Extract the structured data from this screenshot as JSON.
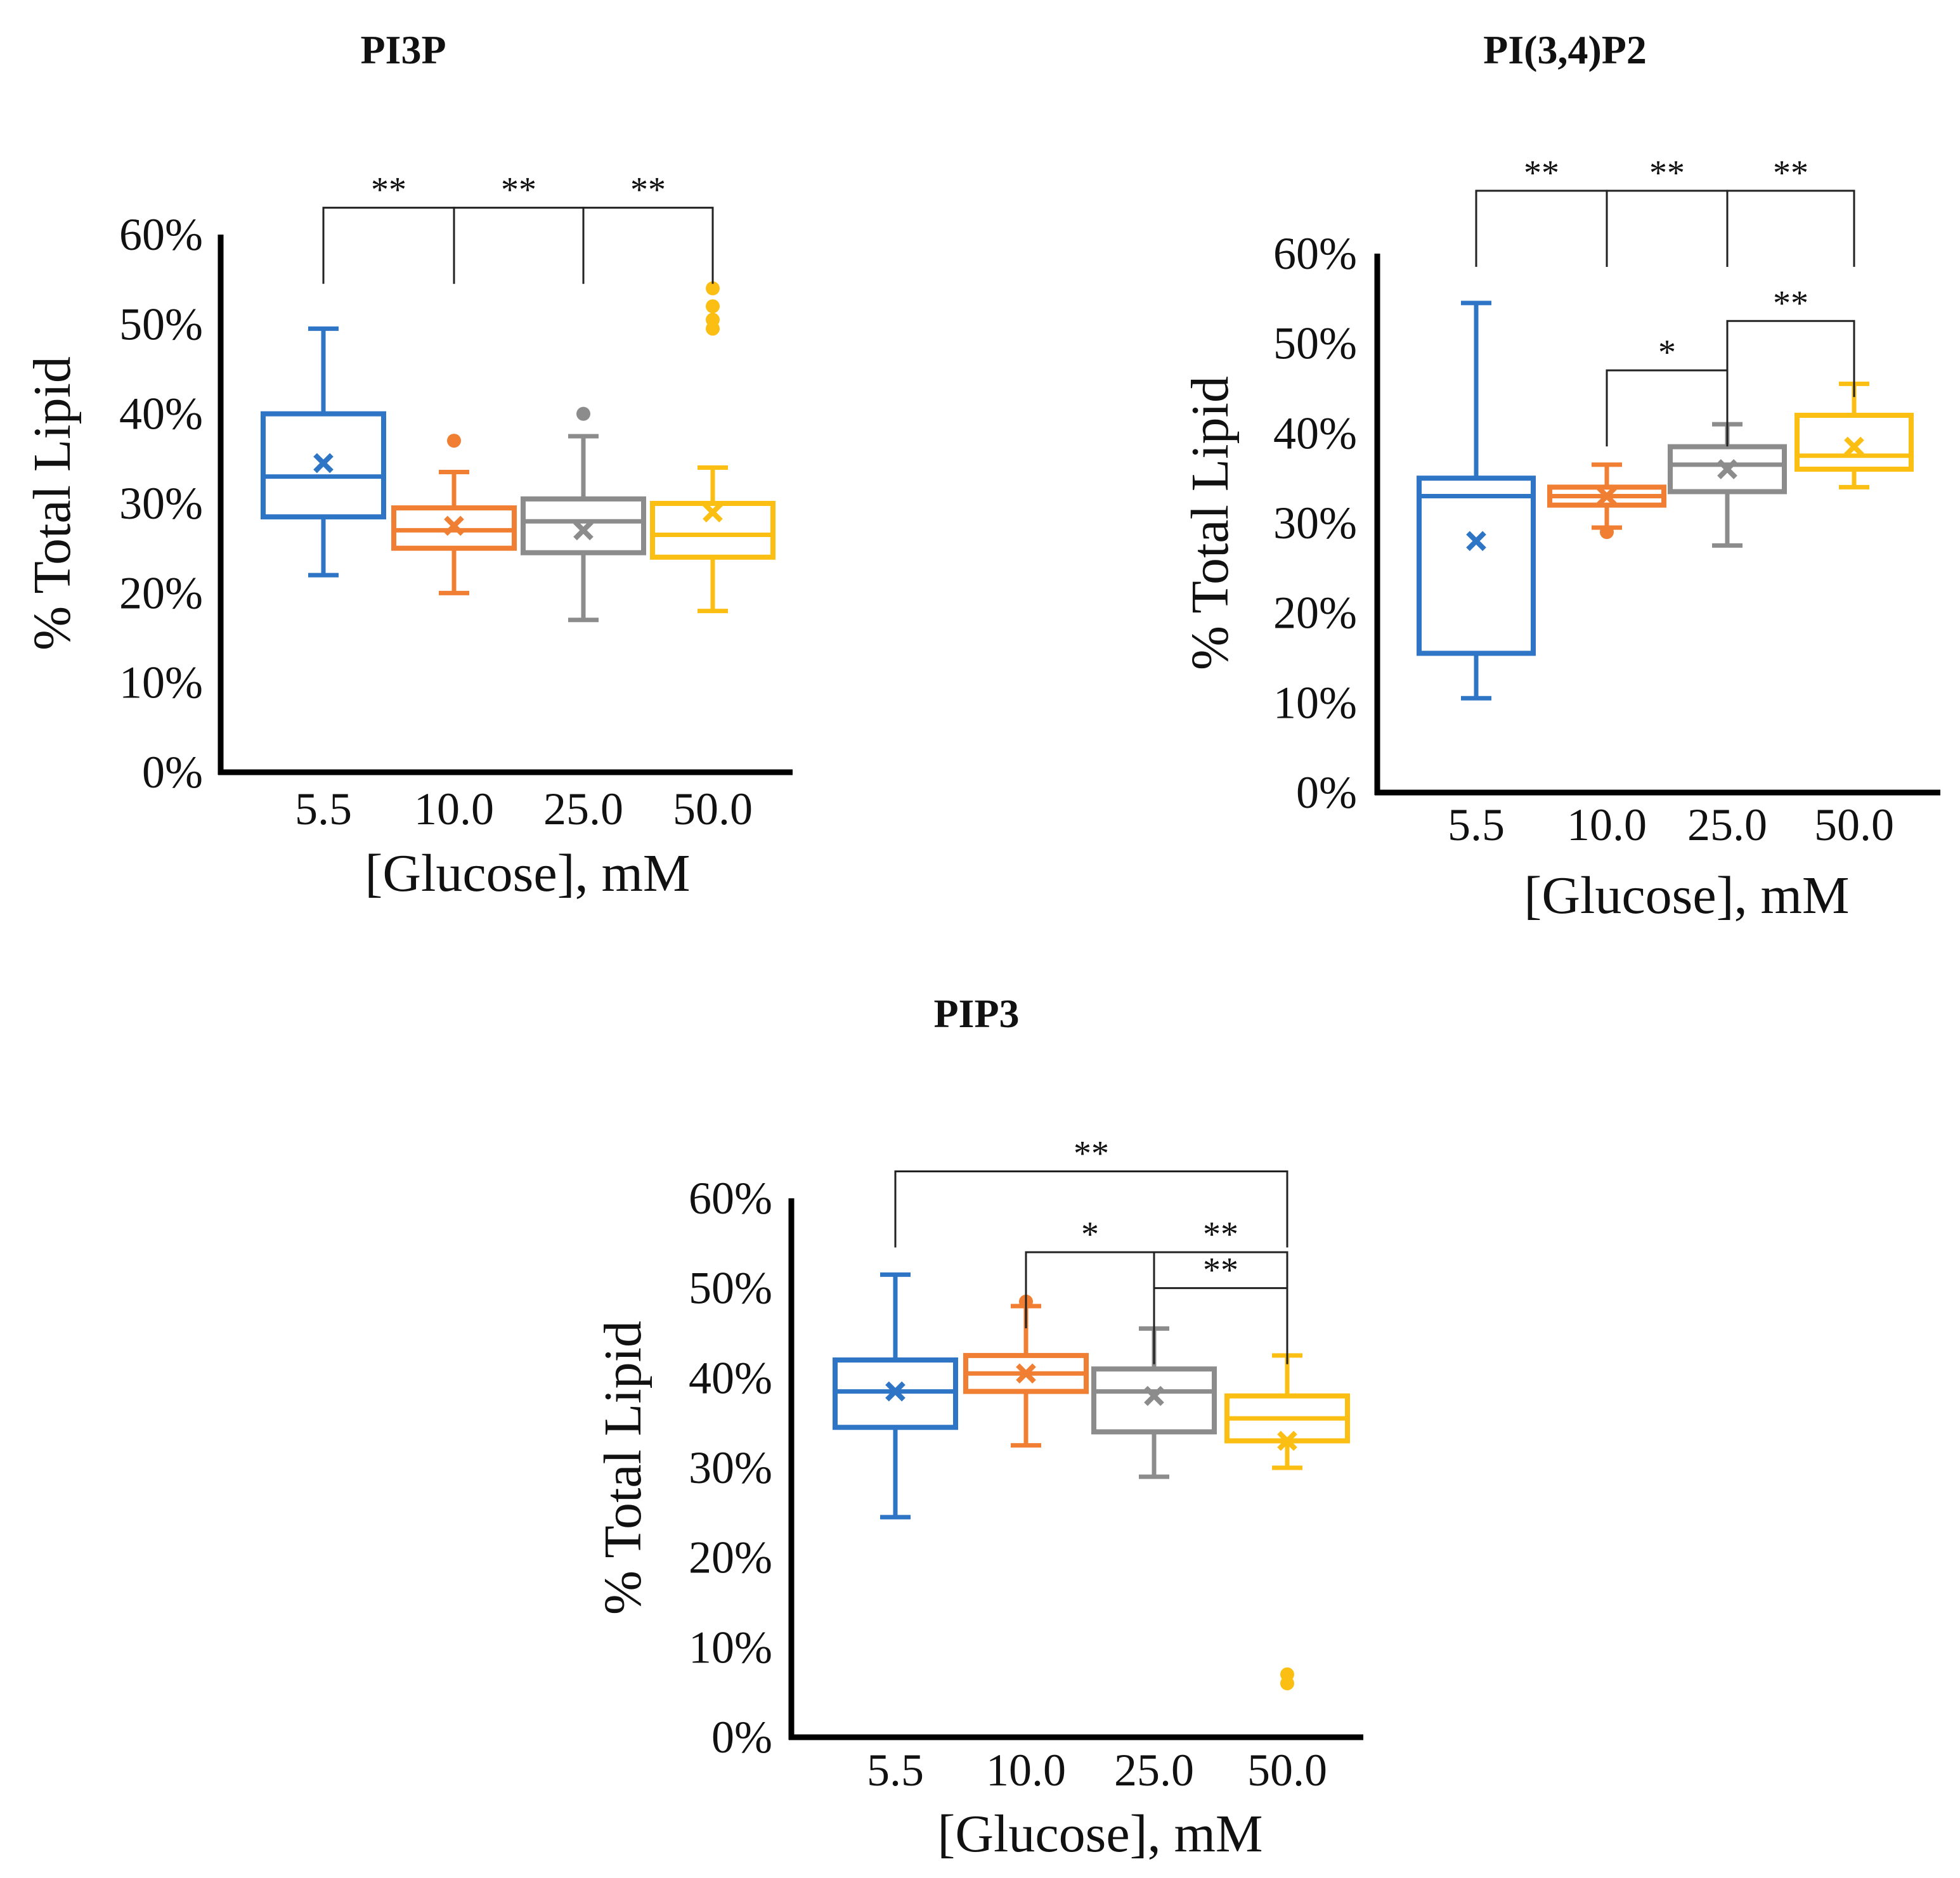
{
  "chart_data": [
    {
      "type": "box",
      "title": "PI3P",
      "xlabel": "[Glucose], mM",
      "ylabel": "% Total Lipid",
      "ylim": [
        0,
        60
      ],
      "yticks": [
        "0%",
        "10%",
        "20%",
        "30%",
        "40%",
        "50%",
        "60%"
      ],
      "categories": [
        "5.5",
        "10.0",
        "25.0",
        "50.0"
      ],
      "series_colors": [
        "#2e75c6",
        "#f07f33",
        "#8c8c8c",
        "#fbbf14"
      ],
      "boxes": [
        {
          "min": 22,
          "q1": 28.5,
          "median": 33,
          "q3": 40,
          "max": 49.5,
          "mean": 34.5,
          "outliers": []
        },
        {
          "min": 20,
          "q1": 25,
          "median": 27,
          "q3": 29.5,
          "max": 33.5,
          "mean": 27.5,
          "outliers": [
            37
          ]
        },
        {
          "min": 17,
          "q1": 24.5,
          "median": 28,
          "q3": 30.5,
          "max": 37.5,
          "mean": 27,
          "outliers": [
            40
          ]
        },
        {
          "min": 18,
          "q1": 24,
          "median": 26.5,
          "q3": 30,
          "max": 34,
          "mean": 29,
          "outliers": [
            49.5,
            50.5,
            52,
            54
          ]
        }
      ],
      "significance": [
        {
          "label": "**",
          "from": 0,
          "to": 1,
          "level": 63
        },
        {
          "label": "**",
          "from": 1,
          "to": 2,
          "level": 63
        },
        {
          "label": "**",
          "from": 2,
          "to": 3,
          "level": 63
        }
      ]
    },
    {
      "type": "box",
      "title": "PI(3,4)P2",
      "xlabel": "[Glucose], mM",
      "ylabel": "% Total Lipid",
      "ylim": [
        0,
        60
      ],
      "yticks": [
        "0%",
        "10%",
        "20%",
        "30%",
        "40%",
        "50%",
        "60%"
      ],
      "categories": [
        "5.5",
        "10.0",
        "25.0",
        "50.0"
      ],
      "series_colors": [
        "#2e75c6",
        "#f07f33",
        "#8c8c8c",
        "#fbbf14"
      ],
      "boxes": [
        {
          "min": 10.5,
          "q1": 15.5,
          "median": 33,
          "q3": 35,
          "max": 54.5,
          "mean": 28,
          "outliers": []
        },
        {
          "min": 29.5,
          "q1": 32,
          "median": 33,
          "q3": 34,
          "max": 36.5,
          "mean": 33,
          "outliers": [
            29
          ]
        },
        {
          "min": 27.5,
          "q1": 33.5,
          "median": 36.5,
          "q3": 38.5,
          "max": 41,
          "mean": 36,
          "outliers": []
        },
        {
          "min": 34,
          "q1": 36,
          "median": 37.5,
          "q3": 42,
          "max": 45.5,
          "mean": 38.5,
          "outliers": []
        }
      ],
      "significance": [
        {
          "label": "**",
          "from": 0,
          "to": 1,
          "level": 67
        },
        {
          "label": "**",
          "from": 1,
          "to": 2,
          "level": 67
        },
        {
          "label": "**",
          "from": 2,
          "to": 3,
          "level": 67
        },
        {
          "label": "*",
          "from": 1,
          "to": 2,
          "level": 47
        },
        {
          "label": "**",
          "from": 2,
          "to": 3,
          "level": 52.5
        }
      ]
    },
    {
      "type": "box",
      "title": "PIP3",
      "xlabel": "[Glucose], mM",
      "ylabel": "% Total Lipid",
      "ylim": [
        0,
        60
      ],
      "yticks": [
        "0%",
        "10%",
        "20%",
        "30%",
        "40%",
        "50%",
        "60%"
      ],
      "categories": [
        "5.5",
        "10.0",
        "25.0",
        "50.0"
      ],
      "series_colors": [
        "#2e75c6",
        "#f07f33",
        "#8c8c8c",
        "#fbbf14"
      ],
      "boxes": [
        {
          "min": 24.5,
          "q1": 34.5,
          "median": 38.5,
          "q3": 42,
          "max": 51.5,
          "mean": 38.5,
          "outliers": []
        },
        {
          "min": 32.5,
          "q1": 38.5,
          "median": 40.5,
          "q3": 42.5,
          "max": 48,
          "mean": 40.5,
          "outliers": [
            48.5
          ]
        },
        {
          "min": 29,
          "q1": 34,
          "median": 38.5,
          "q3": 41,
          "max": 45.5,
          "mean": 38,
          "outliers": []
        },
        {
          "min": 30,
          "q1": 33,
          "median": 35.5,
          "q3": 38,
          "max": 42.5,
          "mean": 33,
          "outliers": [
            6,
            7
          ]
        }
      ],
      "significance": [
        {
          "label": "**",
          "from": 0,
          "to": 3,
          "level": 63
        },
        {
          "label": "*",
          "from": 1,
          "to": 2,
          "level": 54
        },
        {
          "label": "**",
          "from": 2,
          "to": 3,
          "level": 54
        },
        {
          "label": "**",
          "from": 2,
          "to": 3,
          "level": 50
        }
      ]
    }
  ]
}
